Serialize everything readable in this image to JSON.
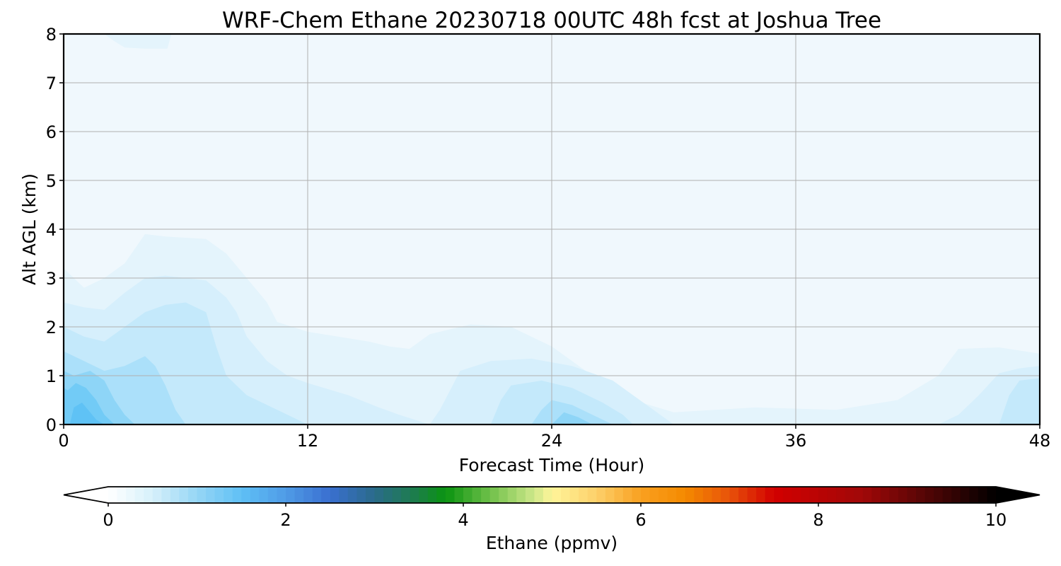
{
  "chart_data": {
    "type": "heatmap",
    "title": "WRF-Chem Ethane  20230718 00UTC 48h fcst at Joshua Tree",
    "xlabel": "Forecast Time (Hour)",
    "ylabel": "Alt AGL (km)",
    "xlim": [
      0,
      48
    ],
    "ylim": [
      0,
      8
    ],
    "xticks": [
      0,
      12,
      24,
      36,
      48
    ],
    "yticks": [
      0,
      1,
      2,
      3,
      4,
      5,
      6,
      7,
      8
    ],
    "grid": true,
    "colorbar": {
      "label": "Ethane  (ppmv)",
      "range": [
        0,
        10
      ],
      "ticks": [
        0,
        2,
        4,
        6,
        8,
        10
      ],
      "extend": "both",
      "orientation": "horizontal",
      "stops": [
        {
          "v": 0.0,
          "color": "#ffffff"
        },
        {
          "v": 0.5,
          "color": "#d6f0fb"
        },
        {
          "v": 1.0,
          "color": "#96d6f5"
        },
        {
          "v": 1.5,
          "color": "#5fc0f5"
        },
        {
          "v": 2.0,
          "color": "#4f9be6"
        },
        {
          "v": 2.5,
          "color": "#3a6fd0"
        },
        {
          "v": 3.0,
          "color": "#2a6b8a"
        },
        {
          "v": 3.5,
          "color": "#1b7f45"
        },
        {
          "v": 3.8,
          "color": "#0a9410"
        },
        {
          "v": 4.3,
          "color": "#6fc04a"
        },
        {
          "v": 4.8,
          "color": "#cfe88a"
        },
        {
          "v": 5.0,
          "color": "#fff59a"
        },
        {
          "v": 5.5,
          "color": "#fdd06a"
        },
        {
          "v": 6.0,
          "color": "#f9a020"
        },
        {
          "v": 6.5,
          "color": "#f48a00"
        },
        {
          "v": 7.0,
          "color": "#e8520a"
        },
        {
          "v": 7.5,
          "color": "#d20000"
        },
        {
          "v": 8.5,
          "color": "#a00808"
        },
        {
          "v": 9.3,
          "color": "#4a0505"
        },
        {
          "v": 10.0,
          "color": "#000000"
        }
      ]
    },
    "levels": [
      {
        "value": 0.15,
        "color": "#f0f8fd",
        "polygon": [
          [
            0,
            0
          ],
          [
            48,
            0
          ],
          [
            48,
            8
          ],
          [
            0,
            8
          ]
        ]
      },
      {
        "value": 0.25,
        "color": "#e4f4fc",
        "polygon": [
          [
            0,
            0
          ],
          [
            48,
            0
          ],
          [
            48,
            1.45
          ],
          [
            46,
            1.58
          ],
          [
            44,
            1.55
          ],
          [
            43,
            1.0
          ],
          [
            41,
            0.5
          ],
          [
            38,
            0.3
          ],
          [
            34,
            0.35
          ],
          [
            30,
            0.25
          ],
          [
            28,
            0.5
          ],
          [
            26,
            1.0
          ],
          [
            24,
            1.6
          ],
          [
            22,
            2.0
          ],
          [
            20,
            2.05
          ],
          [
            18,
            1.85
          ],
          [
            17,
            1.55
          ],
          [
            16,
            1.6
          ],
          [
            15,
            1.7
          ],
          [
            12,
            1.9
          ],
          [
            10.5,
            2.1
          ],
          [
            10,
            2.5
          ],
          [
            9,
            3.0
          ],
          [
            8,
            3.5
          ],
          [
            7,
            3.8
          ],
          [
            5,
            3.85
          ],
          [
            4,
            3.9
          ],
          [
            3,
            3.3
          ],
          [
            2,
            3.0
          ],
          [
            1,
            2.8
          ],
          [
            0,
            3.2
          ]
        ]
      },
      {
        "value": 0.35,
        "color": "#d6effc",
        "polygon": [
          [
            0,
            0
          ],
          [
            18,
            0
          ],
          [
            16.5,
            0.2
          ],
          [
            15.5,
            0.35
          ],
          [
            14,
            0.6
          ],
          [
            12,
            0.85
          ],
          [
            11,
            1.0
          ],
          [
            10,
            1.3
          ],
          [
            9,
            1.8
          ],
          [
            8.5,
            2.3
          ],
          [
            8,
            2.6
          ],
          [
            7,
            2.95
          ],
          [
            5,
            3.05
          ],
          [
            4,
            3.0
          ],
          [
            3,
            2.7
          ],
          [
            2,
            2.35
          ],
          [
            1,
            2.4
          ],
          [
            0,
            2.5
          ]
        ]
      },
      {
        "value": 0.35,
        "color": "#d6effc",
        "polygon": [
          [
            18,
            0
          ],
          [
            30,
            0
          ],
          [
            29,
            0.3
          ],
          [
            28,
            0.6
          ],
          [
            27,
            0.9
          ],
          [
            25,
            1.2
          ],
          [
            23,
            1.35
          ],
          [
            21,
            1.3
          ],
          [
            19.5,
            1.1
          ],
          [
            19,
            0.7
          ],
          [
            18.5,
            0.3
          ]
        ]
      },
      {
        "value": 0.35,
        "color": "#d6effc",
        "polygon": [
          [
            43,
            0
          ],
          [
            48,
            0
          ],
          [
            48,
            1.2
          ],
          [
            47,
            1.15
          ],
          [
            46,
            1.05
          ],
          [
            45,
            0.6
          ],
          [
            44,
            0.2
          ]
        ]
      },
      {
        "value": 0.45,
        "color": "#c4e9fb",
        "polygon": [
          [
            0,
            0
          ],
          [
            12,
            0
          ],
          [
            10.5,
            0.3
          ],
          [
            9,
            0.6
          ],
          [
            8,
            1.0
          ],
          [
            7.5,
            1.6
          ],
          [
            7,
            2.3
          ],
          [
            6,
            2.5
          ],
          [
            5,
            2.45
          ],
          [
            4,
            2.3
          ],
          [
            3,
            2.0
          ],
          [
            2,
            1.7
          ],
          [
            1,
            1.8
          ],
          [
            0,
            2.0
          ]
        ]
      },
      {
        "value": 0.45,
        "color": "#c4e9fb",
        "polygon": [
          [
            21,
            0
          ],
          [
            28,
            0
          ],
          [
            27.5,
            0.2
          ],
          [
            26.5,
            0.45
          ],
          [
            25,
            0.75
          ],
          [
            23.5,
            0.9
          ],
          [
            22,
            0.8
          ],
          [
            21.5,
            0.5
          ]
        ]
      },
      {
        "value": 0.45,
        "color": "#c4e9fb",
        "polygon": [
          [
            46,
            0
          ],
          [
            48,
            0
          ],
          [
            48,
            0.95
          ],
          [
            47,
            0.9
          ],
          [
            46.5,
            0.6
          ]
        ]
      },
      {
        "value": 0.6,
        "color": "#abe0fa",
        "polygon": [
          [
            0,
            0
          ],
          [
            6,
            0
          ],
          [
            5.5,
            0.3
          ],
          [
            5,
            0.8
          ],
          [
            4.5,
            1.2
          ],
          [
            4,
            1.4
          ],
          [
            3,
            1.2
          ],
          [
            2,
            1.1
          ],
          [
            1,
            1.3
          ],
          [
            0,
            1.5
          ]
        ]
      },
      {
        "value": 0.6,
        "color": "#abe0fa",
        "polygon": [
          [
            23,
            0
          ],
          [
            27,
            0
          ],
          [
            26,
            0.2
          ],
          [
            25,
            0.4
          ],
          [
            24,
            0.5
          ],
          [
            23.5,
            0.3
          ]
        ]
      },
      {
        "value": 0.8,
        "color": "#8ed5f7",
        "polygon": [
          [
            0,
            0
          ],
          [
            3.5,
            0
          ],
          [
            3,
            0.2
          ],
          [
            2.5,
            0.5
          ],
          [
            2,
            0.9
          ],
          [
            1.3,
            1.1
          ],
          [
            0.5,
            1.0
          ],
          [
            0,
            1.1
          ]
        ]
      },
      {
        "value": 0.8,
        "color": "#8ed5f7",
        "polygon": [
          [
            24,
            0
          ],
          [
            26,
            0
          ],
          [
            25.3,
            0.15
          ],
          [
            24.6,
            0.25
          ]
        ]
      },
      {
        "value": 1.0,
        "color": "#72cbf6",
        "polygon": [
          [
            0,
            0
          ],
          [
            2.5,
            0
          ],
          [
            2,
            0.2
          ],
          [
            1.6,
            0.5
          ],
          [
            1.1,
            0.75
          ],
          [
            0.6,
            0.85
          ],
          [
            0.2,
            0.7
          ],
          [
            0,
            0.75
          ]
        ]
      },
      {
        "value": 1.2,
        "color": "#5fc2f5",
        "polygon": [
          [
            0.3,
            0
          ],
          [
            2,
            0
          ],
          [
            1.6,
            0.1
          ],
          [
            1.2,
            0.3
          ],
          [
            0.9,
            0.45
          ],
          [
            0.5,
            0.35
          ]
        ]
      },
      {
        "value": 0.25,
        "color": "#e4f4fc",
        "polygon": [
          [
            2,
            8
          ],
          [
            5.3,
            8
          ],
          [
            5.1,
            7.7
          ],
          [
            4,
            7.7
          ],
          [
            3,
            7.72
          ],
          [
            2.5,
            7.85
          ]
        ]
      }
    ]
  }
}
